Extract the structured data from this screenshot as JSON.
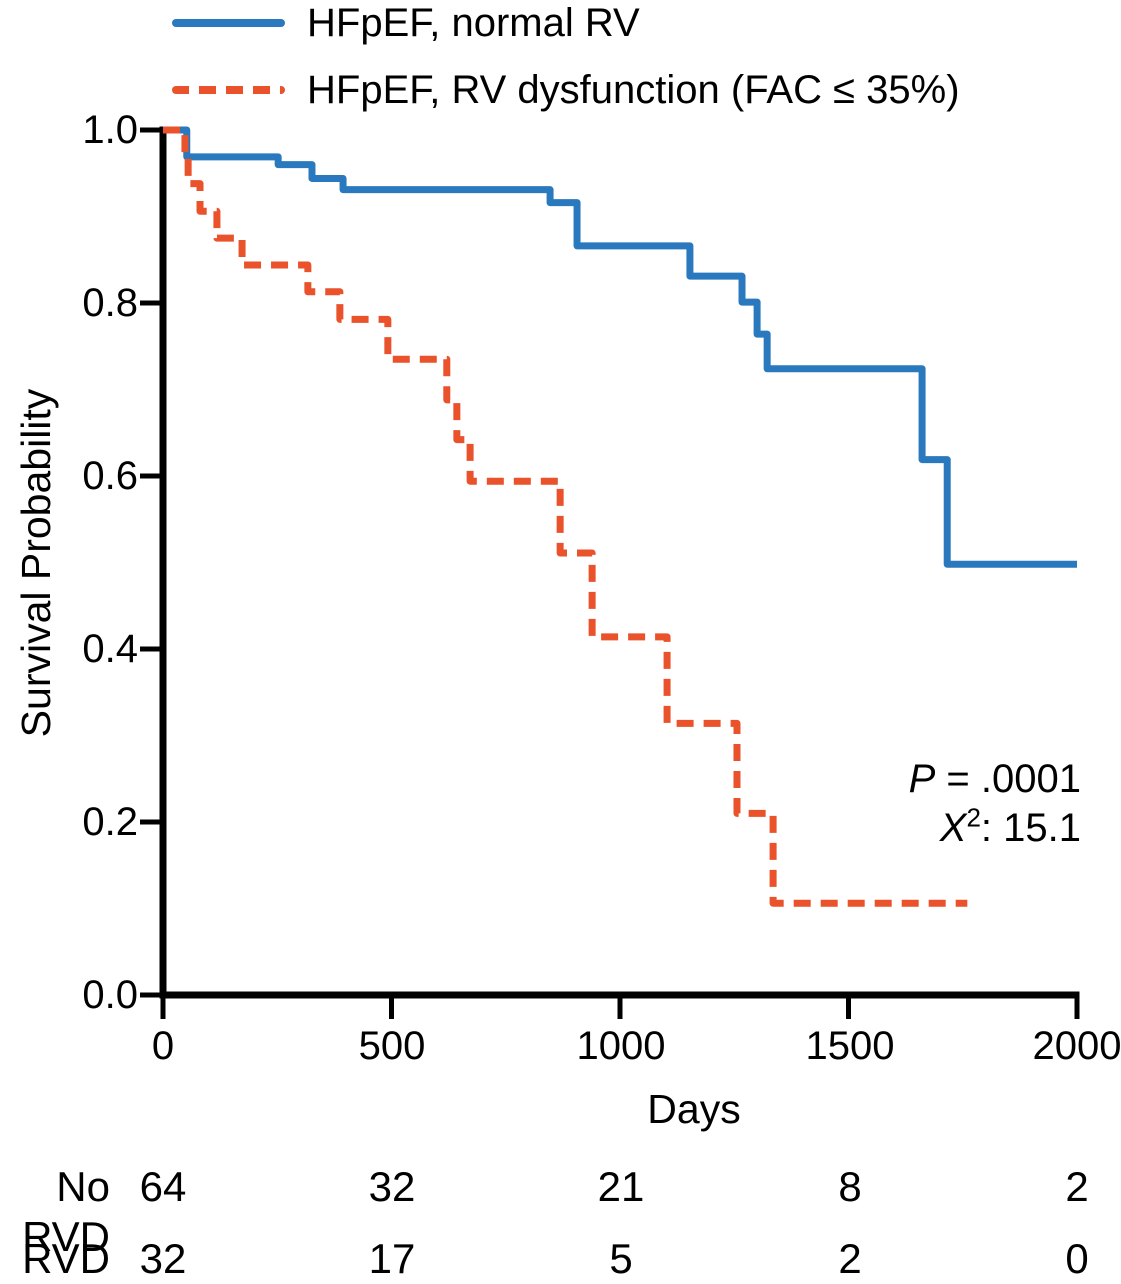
{
  "chart_data": {
    "type": "line",
    "subtype": "kaplan-meier-step",
    "title": "",
    "xlabel": "Days",
    "ylabel": "Survival Probability",
    "xlim": [
      0,
      2000
    ],
    "ylim": [
      0.0,
      1.0
    ],
    "x_ticks": [
      0,
      500,
      1000,
      1500,
      2000
    ],
    "y_ticks": [
      1.0,
      0.8,
      0.6,
      0.4,
      0.2,
      0.0
    ],
    "grid": false,
    "legend_position": "top-left",
    "series": [
      {
        "name": "HFpEF, normal RV",
        "color": "#2A79BE",
        "style": "solid",
        "steps": [
          [
            0,
            1.0
          ],
          [
            52,
            0.969
          ],
          [
            252,
            0.96
          ],
          [
            326,
            0.944
          ],
          [
            394,
            0.931
          ],
          [
            847,
            0.916
          ],
          [
            906,
            0.866
          ],
          [
            1153,
            0.831
          ],
          [
            1267,
            0.801
          ],
          [
            1300,
            0.764
          ],
          [
            1322,
            0.724
          ],
          [
            1661,
            0.619
          ],
          [
            1716,
            0.498
          ],
          [
            2000,
            0.498
          ]
        ]
      },
      {
        "name": "HFpEF, RV dysfunction (FAC ≤ 35%)",
        "color": "#E9522B",
        "style": "dashed",
        "steps": [
          [
            0,
            1.0
          ],
          [
            48,
            0.969
          ],
          [
            55,
            0.938
          ],
          [
            81,
            0.906
          ],
          [
            118,
            0.875
          ],
          [
            173,
            0.844
          ],
          [
            317,
            0.813
          ],
          [
            387,
            0.781
          ],
          [
            492,
            0.735
          ],
          [
            621,
            0.688
          ],
          [
            643,
            0.642
          ],
          [
            672,
            0.594
          ],
          [
            869,
            0.511
          ],
          [
            939,
            0.414
          ],
          [
            1103,
            0.314
          ],
          [
            1256,
            0.21
          ],
          [
            1335,
            0.106
          ],
          [
            1760,
            0.106
          ]
        ]
      }
    ],
    "annotations": [
      "P = .0001",
      "X²: 15.1"
    ]
  },
  "legend": {
    "items": [
      {
        "label": "HFpEF, normal RV",
        "color": "#2A79BE",
        "style": "solid"
      },
      {
        "label": "HFpEF, RV dysfunction (FAC ≤ 35%)",
        "color": "#E9522B",
        "style": "dashed"
      }
    ]
  },
  "axes": {
    "xlabel": "Days",
    "ylabel": "Survival Probability",
    "x_tick_labels": [
      "0",
      "500",
      "1000",
      "1500",
      "2000"
    ],
    "y_tick_labels": [
      "1.0",
      "0.8",
      "0.6",
      "0.4",
      "0.2",
      "0.0"
    ]
  },
  "annotation": {
    "p_italic": "P",
    "p_text": " = .0001",
    "x_italic": "X",
    "x_sup": "2",
    "x_text": ": 15.1"
  },
  "risk_table": {
    "rows": [
      {
        "label": "No RVD",
        "counts": [
          "64",
          "32",
          "21",
          "8",
          "2"
        ]
      },
      {
        "label": "RVD",
        "counts": [
          "32",
          "17",
          "5",
          "2",
          "0"
        ]
      }
    ]
  },
  "colors": {
    "curve_normal": "#2A79BE",
    "curve_rvd": "#E9522B",
    "axis": "#000000"
  }
}
